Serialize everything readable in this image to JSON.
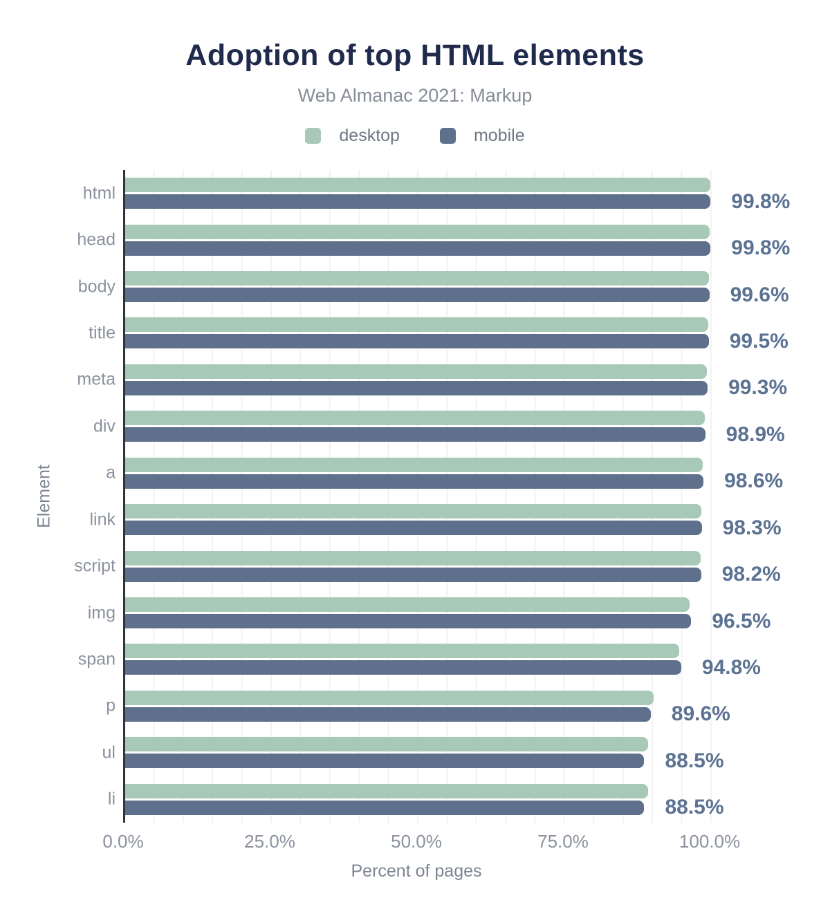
{
  "chart_data": {
    "type": "bar",
    "orientation": "horizontal",
    "title": "Adoption of top HTML elements",
    "subtitle": "Web Almanac 2021: Markup",
    "xlabel": "Percent of pages",
    "ylabel": "Element",
    "xlim": [
      0,
      100
    ],
    "x_ticks": [
      {
        "label": "0.0%",
        "value": 0
      },
      {
        "label": "25.0%",
        "value": 25
      },
      {
        "label": "50.0%",
        "value": 50
      },
      {
        "label": "75.0%",
        "value": 75
      },
      {
        "label": "100.0%",
        "value": 100
      }
    ],
    "grid": "vertical light gridlines every 5%",
    "legend_position": "top-center",
    "categories": [
      "html",
      "head",
      "body",
      "title",
      "meta",
      "div",
      "a",
      "link",
      "script",
      "img",
      "span",
      "p",
      "ul",
      "li"
    ],
    "series": [
      {
        "name": "desktop",
        "color": "#a8c9b8",
        "values": [
          99.8,
          99.7,
          99.5,
          99.4,
          99.2,
          98.8,
          98.5,
          98.2,
          98.1,
          96.2,
          94.4,
          90.1,
          89.2,
          89.2
        ]
      },
      {
        "name": "mobile",
        "color": "#5f708c",
        "values": [
          99.8,
          99.8,
          99.6,
          99.5,
          99.3,
          98.9,
          98.6,
          98.3,
          98.2,
          96.5,
          94.8,
          89.6,
          88.5,
          88.5
        ]
      }
    ],
    "value_labels": [
      "99.8%",
      "99.8%",
      "99.6%",
      "99.5%",
      "99.3%",
      "98.9%",
      "98.6%",
      "98.3%",
      "98.2%",
      "96.5%",
      "94.8%",
      "89.6%",
      "88.5%",
      "88.5%"
    ]
  },
  "colors": {
    "title": "#1f2a4c",
    "subtitle": "#878d98",
    "desktop_bar": "#a8c9b8",
    "mobile_bar": "#5f708c",
    "value_label": "#5b7292",
    "axis_text": "#8b919d",
    "axis_title": "#7d8594",
    "axis_line": "#30343b",
    "gridline": "#f2f2f2",
    "background": "#ffffff"
  }
}
